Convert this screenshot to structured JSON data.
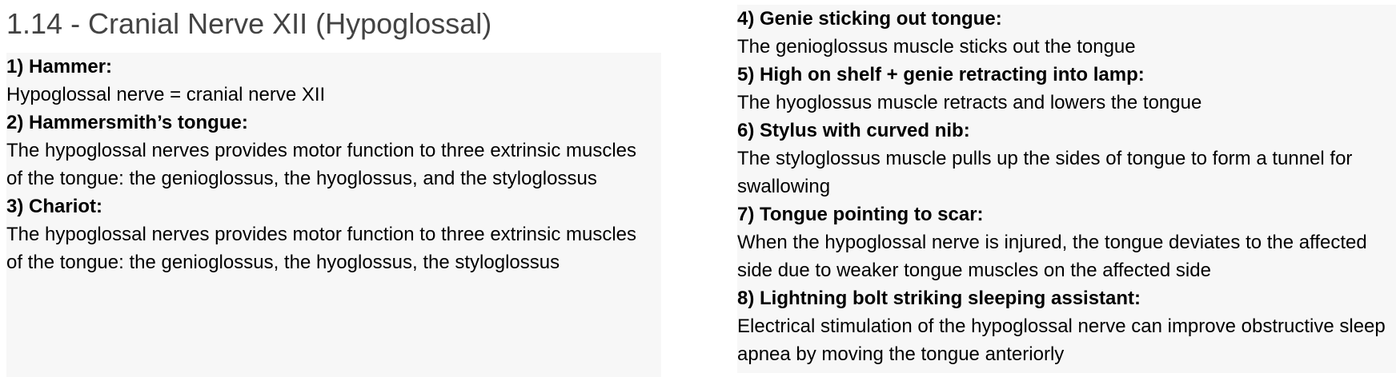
{
  "title": "1.14 - Cranial Nerve XII (Hypoglossal)",
  "left_items": [
    {
      "heading": "1) Hammer:",
      "body": "Hypoglossal nerve = cranial nerve XII"
    },
    {
      "heading": "2) Hammersmith’s tongue:",
      "body": "The hypoglossal nerves provides motor function to three extrinsic muscles of the tongue: the genioglossus, the hyoglossus, and the styloglossus"
    },
    {
      "heading": "3) Chariot:",
      "body": "The hypoglossal nerves provides motor function to three extrinsic muscles of the tongue: the genioglossus, the hyoglossus, the styloglossus"
    }
  ],
  "right_items": [
    {
      "heading": "4) Genie sticking out tongue:",
      "body": "The genioglossus muscle sticks out the tongue"
    },
    {
      "heading": "5) High on shelf + genie retracting into lamp:",
      "body": "The hyoglossus muscle retracts and lowers the tongue"
    },
    {
      "heading": "6) Stylus with curved nib:",
      "body": "The styloglossus muscle pulls up the sides of tongue to form a tunnel for swallowing"
    },
    {
      "heading": "7) Tongue pointing to scar:",
      "body": "When the hypoglossal nerve is injured, the tongue deviates to the affected side due to weaker tongue muscles on the affected side"
    },
    {
      "heading": "8) Lightning bolt striking sleeping assistant:",
      "body": "Electrical stimulation of the hypoglossal nerve can improve obstructive sleep apnea by moving the tongue anteriorly"
    }
  ],
  "colors": {
    "title": "#434343",
    "panel_bg": "#f7f7f7",
    "text": "#000000"
  }
}
